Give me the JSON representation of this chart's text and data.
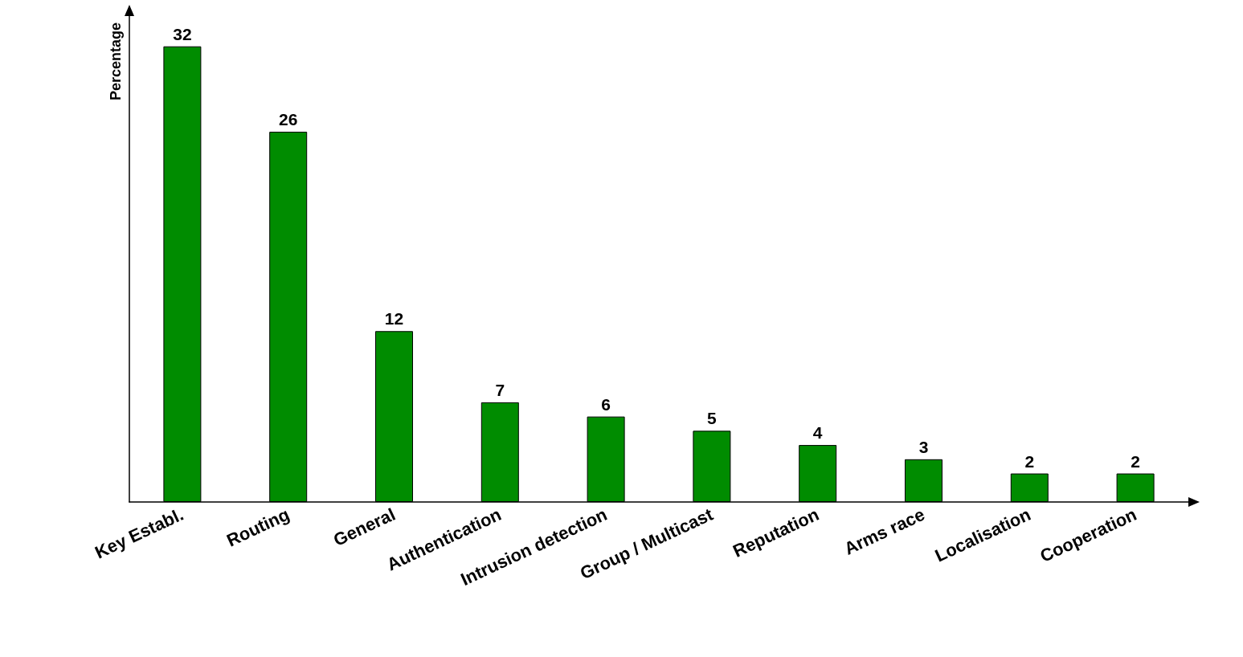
{
  "chart_data": {
    "type": "bar",
    "ylabel": "Percentage",
    "categories": [
      "Key Establ.",
      "Routing",
      "General",
      "Authentication",
      "Intrusion detection",
      "Group / Multicast",
      "Reputation",
      "Arms race",
      "Localisation",
      "Cooperation"
    ],
    "values": [
      32,
      26,
      12,
      7,
      6,
      5,
      4,
      3,
      2,
      2
    ],
    "color": "#008c00",
    "data_labels": true
  }
}
